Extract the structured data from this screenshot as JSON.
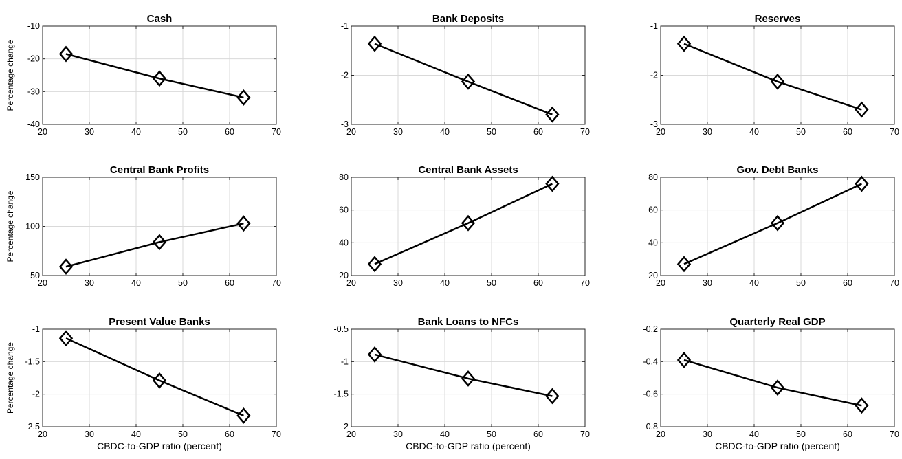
{
  "chart_data": [
    {
      "type": "line",
      "title": "Cash",
      "ylabel": "Percentage change",
      "xlabel": "",
      "x": [
        25,
        45,
        63
      ],
      "y": [
        -18.5,
        -26,
        -31.8
      ],
      "xlim": [
        20,
        70
      ],
      "ylim": [
        -40,
        -10
      ],
      "xticks": [
        20,
        30,
        40,
        50,
        60,
        70
      ],
      "yticks": [
        -40,
        -30,
        -20,
        -10
      ],
      "grid": true
    },
    {
      "type": "line",
      "title": "Bank Deposits",
      "ylabel": "",
      "xlabel": "",
      "x": [
        25,
        45,
        63
      ],
      "y": [
        -1.36,
        -2.13,
        -2.8
      ],
      "xlim": [
        20,
        70
      ],
      "ylim": [
        -3,
        -1
      ],
      "xticks": [
        20,
        30,
        40,
        50,
        60,
        70
      ],
      "yticks": [
        -3,
        -2,
        -1
      ],
      "grid": true
    },
    {
      "type": "line",
      "title": "Reserves",
      "ylabel": "",
      "xlabel": "",
      "x": [
        25,
        45,
        63
      ],
      "y": [
        -1.36,
        -2.13,
        -2.7
      ],
      "xlim": [
        20,
        70
      ],
      "ylim": [
        -3,
        -1
      ],
      "xticks": [
        20,
        30,
        40,
        50,
        60,
        70
      ],
      "yticks": [
        -3,
        -2,
        -1
      ],
      "grid": true
    },
    {
      "type": "line",
      "title": "Central Bank Profits",
      "ylabel": "Percentage change",
      "xlabel": "",
      "x": [
        25,
        45,
        63
      ],
      "y": [
        59,
        84,
        103
      ],
      "xlim": [
        20,
        70
      ],
      "ylim": [
        50,
        150
      ],
      "xticks": [
        20,
        30,
        40,
        50,
        60,
        70
      ],
      "yticks": [
        50,
        100,
        150
      ],
      "grid": true
    },
    {
      "type": "line",
      "title": "Central Bank Assets",
      "ylabel": "",
      "xlabel": "",
      "x": [
        25,
        45,
        63
      ],
      "y": [
        27,
        52,
        76
      ],
      "xlim": [
        20,
        70
      ],
      "ylim": [
        20,
        80
      ],
      "xticks": [
        20,
        30,
        40,
        50,
        60,
        70
      ],
      "yticks": [
        20,
        40,
        60,
        80
      ],
      "grid": true
    },
    {
      "type": "line",
      "title": "Gov. Debt Banks",
      "ylabel": "",
      "xlabel": "",
      "x": [
        25,
        45,
        63
      ],
      "y": [
        27,
        52,
        76
      ],
      "xlim": [
        20,
        70
      ],
      "ylim": [
        20,
        80
      ],
      "xticks": [
        20,
        30,
        40,
        50,
        60,
        70
      ],
      "yticks": [
        20,
        40,
        60,
        80
      ],
      "grid": true
    },
    {
      "type": "line",
      "title": "Present Value Banks",
      "ylabel": "Percentage change",
      "xlabel": "CBDC-to-GDP ratio (percent)",
      "x": [
        25,
        45,
        63
      ],
      "y": [
        -1.14,
        -1.79,
        -2.33
      ],
      "xlim": [
        20,
        70
      ],
      "ylim": [
        -2.5,
        -1
      ],
      "xticks": [
        20,
        30,
        40,
        50,
        60,
        70
      ],
      "yticks": [
        -2.5,
        -2,
        -1.5,
        -1
      ],
      "grid": true
    },
    {
      "type": "line",
      "title": "Bank Loans to NFCs",
      "ylabel": "",
      "xlabel": "CBDC-to-GDP ratio (percent)",
      "x": [
        25,
        45,
        63
      ],
      "y": [
        -0.89,
        -1.26,
        -1.53
      ],
      "xlim": [
        20,
        70
      ],
      "ylim": [
        -2,
        -0.5
      ],
      "xticks": [
        20,
        30,
        40,
        50,
        60,
        70
      ],
      "yticks": [
        -2,
        -1.5,
        -1,
        -0.5
      ],
      "grid": true
    },
    {
      "type": "line",
      "title": "Quarterly Real GDP",
      "ylabel": "",
      "xlabel": "CBDC-to-GDP ratio (percent)",
      "x": [
        25,
        45,
        63
      ],
      "y": [
        -0.39,
        -0.56,
        -0.67
      ],
      "xlim": [
        20,
        70
      ],
      "ylim": [
        -0.8,
        -0.2
      ],
      "xticks": [
        20,
        30,
        40,
        50,
        60,
        70
      ],
      "yticks": [
        -0.8,
        -0.6,
        -0.4,
        -0.2
      ],
      "grid": true
    }
  ]
}
